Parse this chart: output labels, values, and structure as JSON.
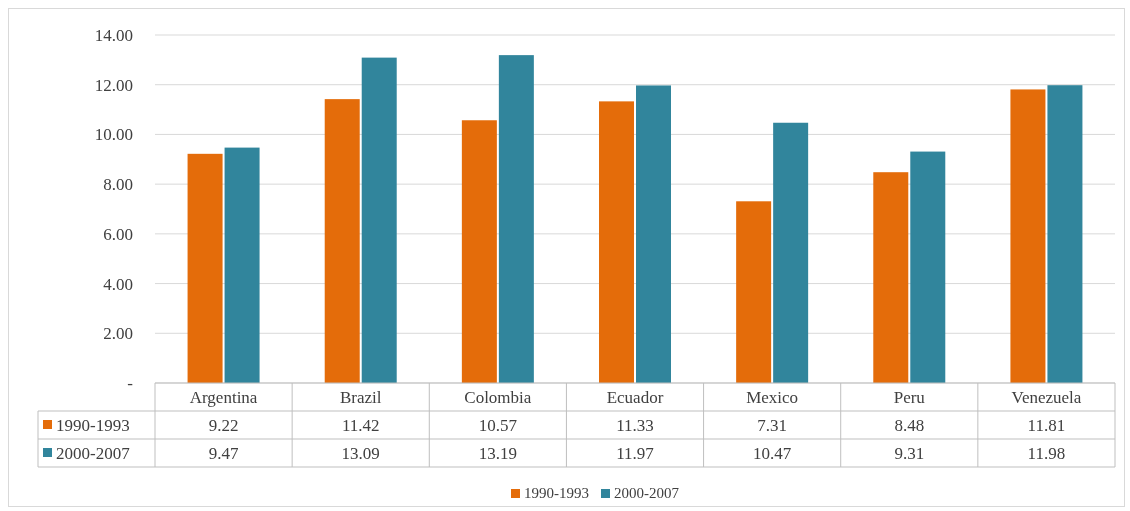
{
  "chart_data": {
    "type": "bar",
    "categories": [
      "Argentina",
      "Brazil",
      "Colombia",
      "Ecuador",
      "Mexico",
      "Peru",
      "Venezuela"
    ],
    "series": [
      {
        "name": "1990-1993",
        "color": "#e46c0a",
        "values": [
          9.22,
          11.42,
          10.57,
          11.33,
          7.31,
          8.48,
          11.81
        ]
      },
      {
        "name": "2000-2007",
        "color": "#31859c",
        "values": [
          9.47,
          13.09,
          13.19,
          11.97,
          10.47,
          9.31,
          11.98
        ]
      }
    ],
    "ylim": [
      0,
      14
    ],
    "yticks": [
      {
        "value": 0,
        "label": "-"
      },
      {
        "value": 2,
        "label": "2.00"
      },
      {
        "value": 4,
        "label": "4.00"
      },
      {
        "value": 6,
        "label": "6.00"
      },
      {
        "value": 8,
        "label": "8.00"
      },
      {
        "value": 10,
        "label": "10.00"
      },
      {
        "value": 12,
        "label": "12.00"
      },
      {
        "value": 14,
        "label": "14.00"
      }
    ],
    "grid": "y",
    "legend": "bottom",
    "data_labels": true
  }
}
